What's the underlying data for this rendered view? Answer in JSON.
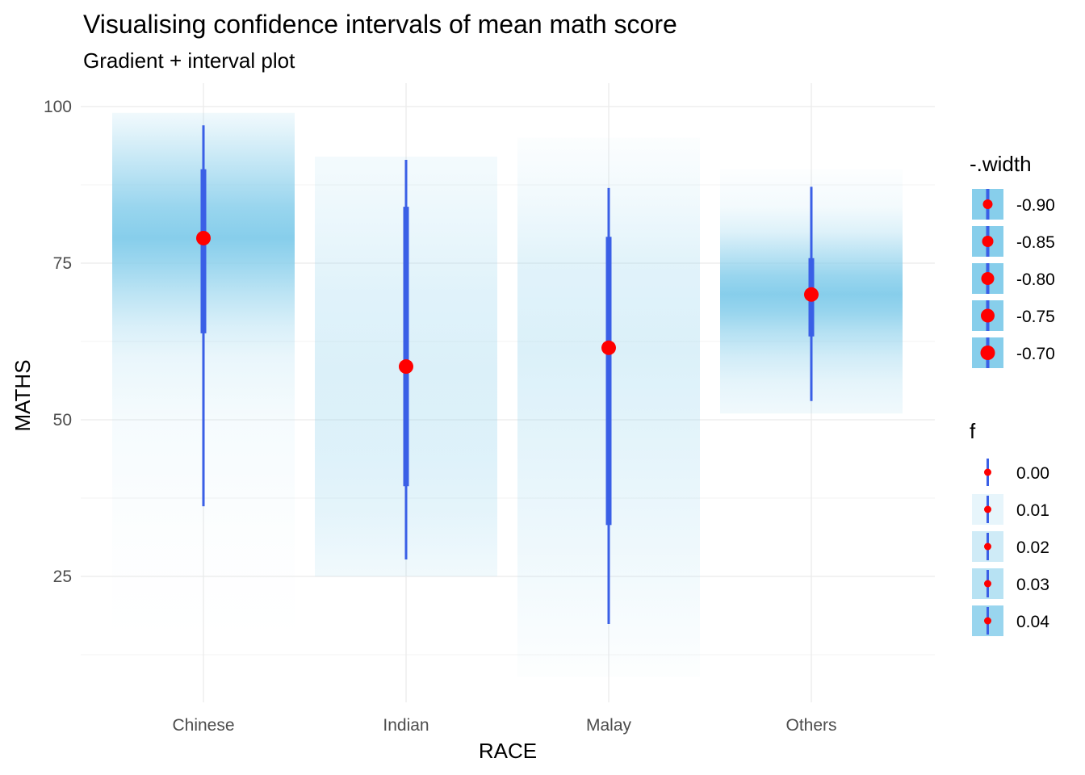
{
  "chart_data": {
    "type": "gradient-interval",
    "title": "Visualising confidence intervals of mean math score",
    "subtitle": "Gradient + interval plot",
    "xlabel": "RACE",
    "ylabel": "MATHS",
    "ylim": [
      9,
      103
    ],
    "yticks": [
      25,
      50,
      75,
      100
    ],
    "grid": true,
    "categories": [
      "Chinese",
      "Indian",
      "Malay",
      "Others"
    ],
    "groups": [
      {
        "category": "Chinese",
        "point": 79.0,
        "inner": [
          63.8,
          90.0
        ],
        "outer": [
          36.2,
          97.0
        ],
        "gradient_range": [
          15.0,
          99.0
        ],
        "density": [
          [
            15,
            0.0
          ],
          [
            30,
            0.02
          ],
          [
            40,
            0.05
          ],
          [
            50,
            0.08
          ],
          [
            60,
            0.18
          ],
          [
            65,
            0.32
          ],
          [
            70,
            0.55
          ],
          [
            75,
            0.82
          ],
          [
            79,
            1.0
          ],
          [
            84,
            0.85
          ],
          [
            88,
            0.65
          ],
          [
            92,
            0.45
          ],
          [
            96,
            0.25
          ],
          [
            99,
            0.12
          ]
        ]
      },
      {
        "category": "Indian",
        "point": 58.5,
        "inner": [
          39.4,
          84.0
        ],
        "outer": [
          27.7,
          91.5
        ],
        "gradient_range": [
          25.0,
          92.0
        ],
        "density": [
          [
            25,
            0.12
          ],
          [
            35,
            0.22
          ],
          [
            45,
            0.28
          ],
          [
            58,
            0.3
          ],
          [
            70,
            0.26
          ],
          [
            80,
            0.18
          ],
          [
            88,
            0.12
          ],
          [
            92,
            0.1
          ]
        ]
      },
      {
        "category": "Malay",
        "point": 61.5,
        "inner": [
          33.2,
          79.2
        ],
        "outer": [
          17.4,
          87.0
        ],
        "gradient_range": [
          9.0,
          95.0
        ],
        "density": [
          [
            9,
            0.02
          ],
          [
            20,
            0.08
          ],
          [
            30,
            0.14
          ],
          [
            45,
            0.22
          ],
          [
            61,
            0.3
          ],
          [
            75,
            0.25
          ],
          [
            85,
            0.12
          ],
          [
            95,
            0.03
          ]
        ]
      },
      {
        "category": "Others",
        "point": 70.0,
        "inner": [
          63.3,
          75.8
        ],
        "outer": [
          53.0,
          87.2
        ],
        "gradient_range": [
          51.0,
          90.0
        ],
        "density": [
          [
            51,
            0.12
          ],
          [
            56,
            0.22
          ],
          [
            60,
            0.38
          ],
          [
            64,
            0.62
          ],
          [
            67,
            0.85
          ],
          [
            70,
            1.0
          ],
          [
            73,
            0.85
          ],
          [
            76,
            0.6
          ],
          [
            80,
            0.28
          ],
          [
            84,
            0.1
          ],
          [
            90,
            0.02
          ]
        ]
      }
    ],
    "colors": {
      "gradient": "#87ceeb",
      "interval": "#3a5fe6",
      "point": "#ff0000",
      "grid_major": "#ebebeb",
      "grid_minor": "#f3f3f3"
    }
  },
  "legend": {
    "width": {
      "title": "-.width",
      "items": [
        {
          "label": "-0.90",
          "size": 6
        },
        {
          "label": "-0.85",
          "size": 7
        },
        {
          "label": "-0.80",
          "size": 8
        },
        {
          "label": "-0.75",
          "size": 8.5
        },
        {
          "label": "-0.70",
          "size": 9
        }
      ]
    },
    "f": {
      "title": "f",
      "items": [
        {
          "label": "0.00",
          "alpha": 0.0
        },
        {
          "label": "0.01",
          "alpha": 0.2
        },
        {
          "label": "0.02",
          "alpha": 0.4
        },
        {
          "label": "0.03",
          "alpha": 0.6
        },
        {
          "label": "0.04",
          "alpha": 0.85
        }
      ]
    }
  }
}
